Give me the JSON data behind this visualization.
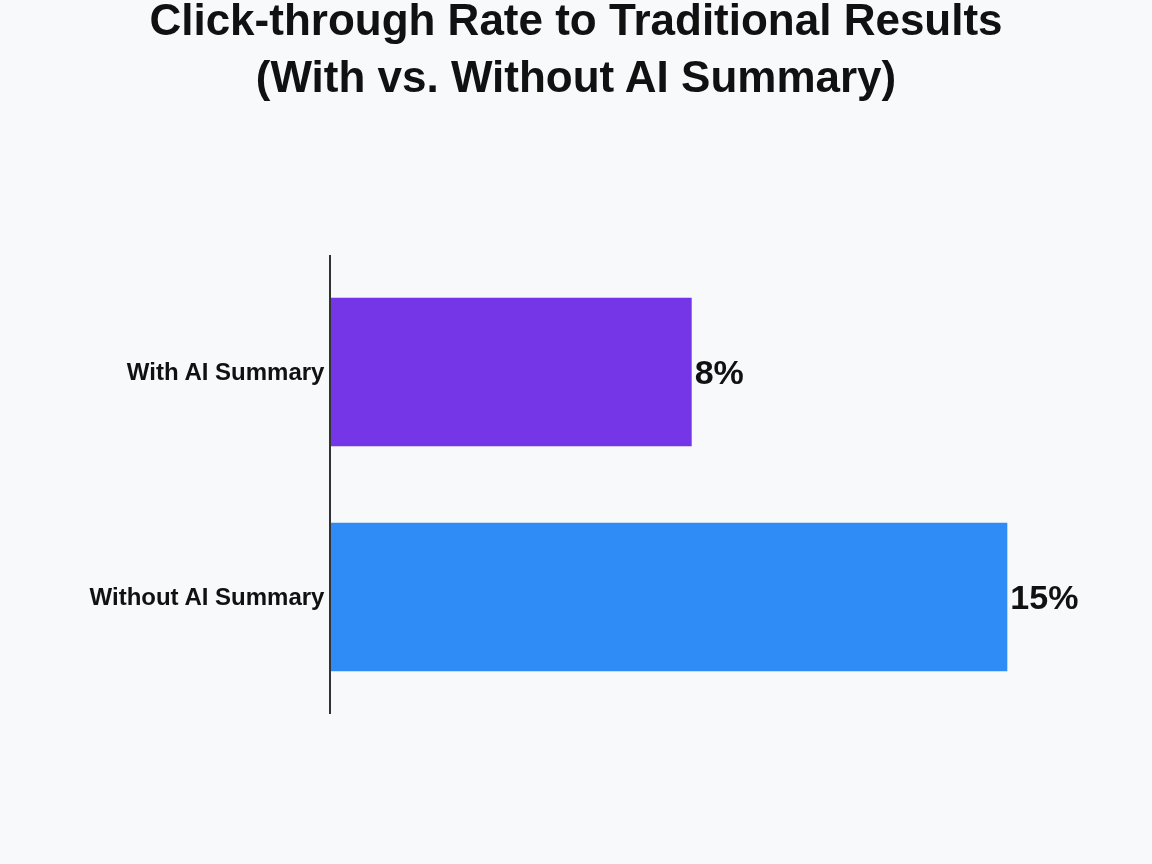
{
  "chart_data": {
    "type": "bar",
    "orientation": "horizontal",
    "title": "Click-through Rate to Traditional Results\n(With vs. Without AI Summary)",
    "categories": [
      "With AI Summary",
      "Without AI Summary"
    ],
    "values": [
      8,
      15
    ],
    "colors": [
      "#7536e8",
      "#2f8bf5"
    ],
    "value_labels": [
      "8%",
      "15%"
    ],
    "tick_labels": "y",
    "grid": false,
    "legend": false
  }
}
